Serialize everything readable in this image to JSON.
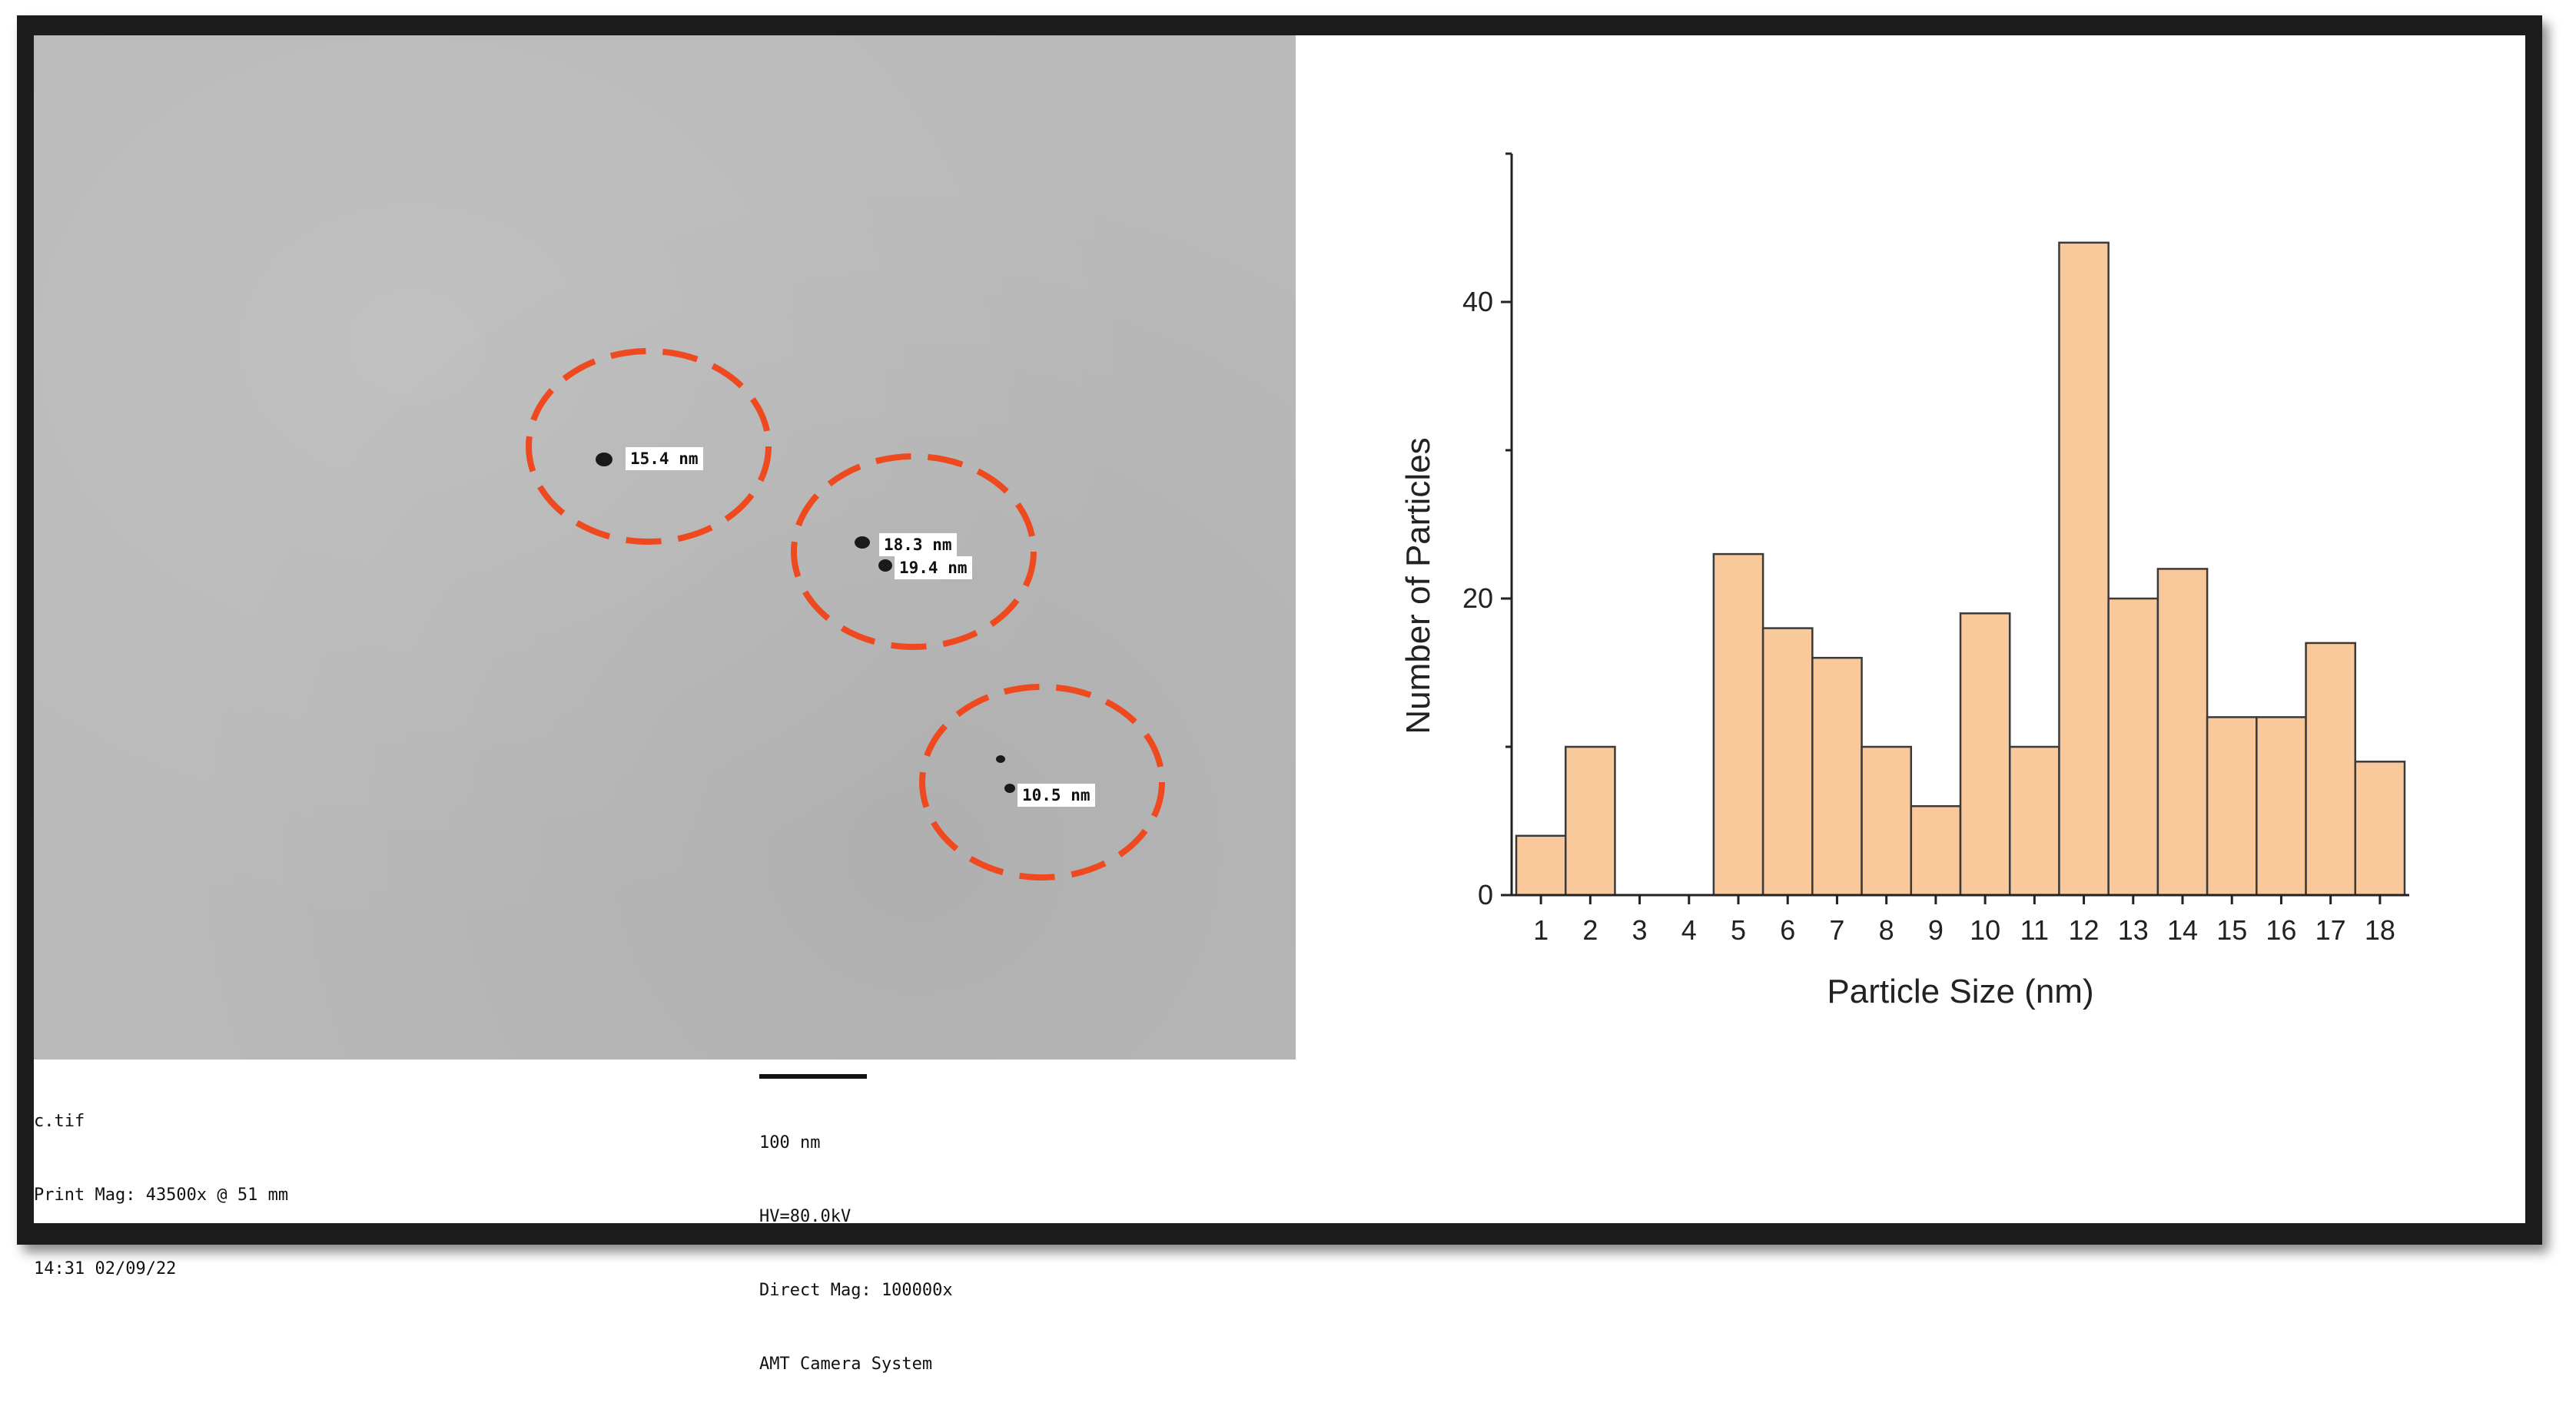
{
  "micrograph": {
    "annotations": [
      "15.4 nm",
      "18.3 nm",
      "19.4 nm",
      "10.5 nm"
    ],
    "circle_color": "#ef4a1f",
    "footer_left": [
      "c.tif",
      "Print Mag: 43500x @ 51 mm",
      "14:31 02/09/22"
    ],
    "scale_label": "100 nm",
    "footer_right": [
      "HV=80.0kV",
      "Direct Mag: 100000x",
      "AMT Camera System"
    ]
  },
  "chart_data": {
    "type": "bar",
    "categories": [
      "1",
      "2",
      "3",
      "4",
      "5",
      "6",
      "7",
      "8",
      "9",
      "10",
      "11",
      "12",
      "13",
      "14",
      "15",
      "16",
      "17",
      "18"
    ],
    "values": [
      4,
      10,
      0,
      0,
      23,
      18,
      16,
      10,
      6,
      19,
      10,
      44,
      20,
      22,
      12,
      12,
      17,
      9
    ],
    "xlabel": "Particle Size (nm)",
    "ylabel": "Number of Particles",
    "ylim": [
      0,
      50
    ],
    "yticks": [
      0,
      20,
      40
    ],
    "bar_color": "#f9c89b",
    "bar_edge_color": "#3a3a3a",
    "grid": false
  }
}
